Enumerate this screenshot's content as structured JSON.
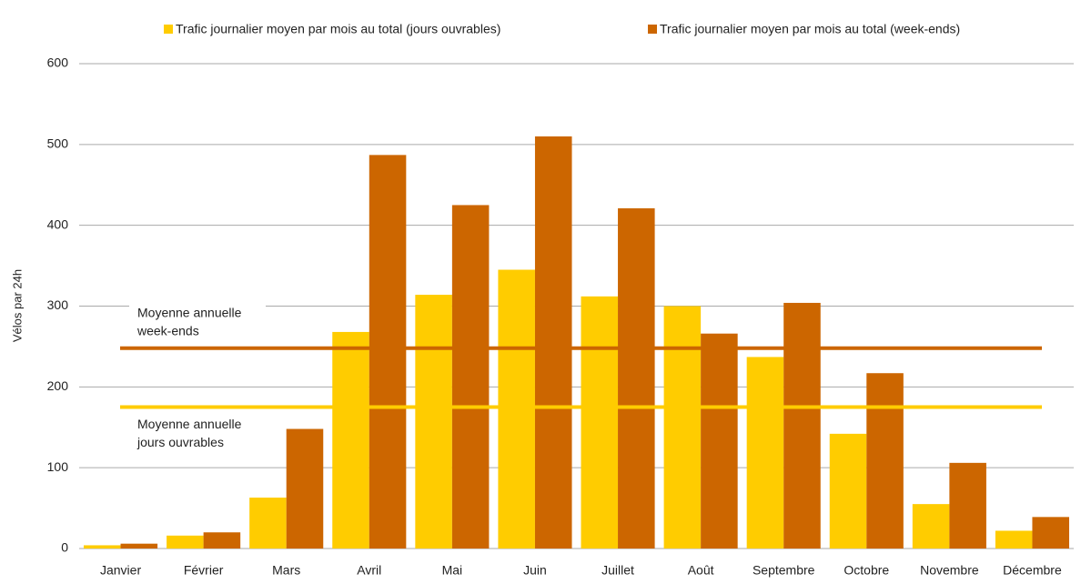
{
  "chart_data": {
    "type": "bar",
    "y_label": "Vélos par 24h",
    "categories": [
      "Janvier",
      "Février",
      "Mars",
      "Avril",
      "Mai",
      "Juin",
      "Juillet",
      "Août",
      "Septembre",
      "Octobre",
      "Novembre",
      "Décembre"
    ],
    "series": [
      {
        "name": "Trafic journalier moyen par mois au total (jours ouvrables)",
        "color": "#ffcc00",
        "values": [
          4,
          16,
          63,
          268,
          314,
          345,
          312,
          300,
          237,
          142,
          55,
          22
        ]
      },
      {
        "name": "Trafic journalier moyen par mois au total (week-ends)",
        "color": "#cc6600",
        "values": [
          6,
          20,
          148,
          487,
          425,
          510,
          421,
          266,
          304,
          217,
          106,
          39
        ]
      }
    ],
    "reference_lines": [
      {
        "label": [
          "Moyenne annuelle",
          "week-ends"
        ],
        "value": 248,
        "color": "#cc6600",
        "label_side": "above"
      },
      {
        "label": [
          "Moyenne annuelle",
          "jours ouvrables"
        ],
        "value": 175,
        "color": "#ffcc00",
        "label_side": "below"
      }
    ],
    "ylim": [
      0,
      600
    ],
    "yticks": [
      0,
      100,
      200,
      300,
      400,
      500,
      600
    ],
    "grid": true,
    "legend": "top"
  }
}
